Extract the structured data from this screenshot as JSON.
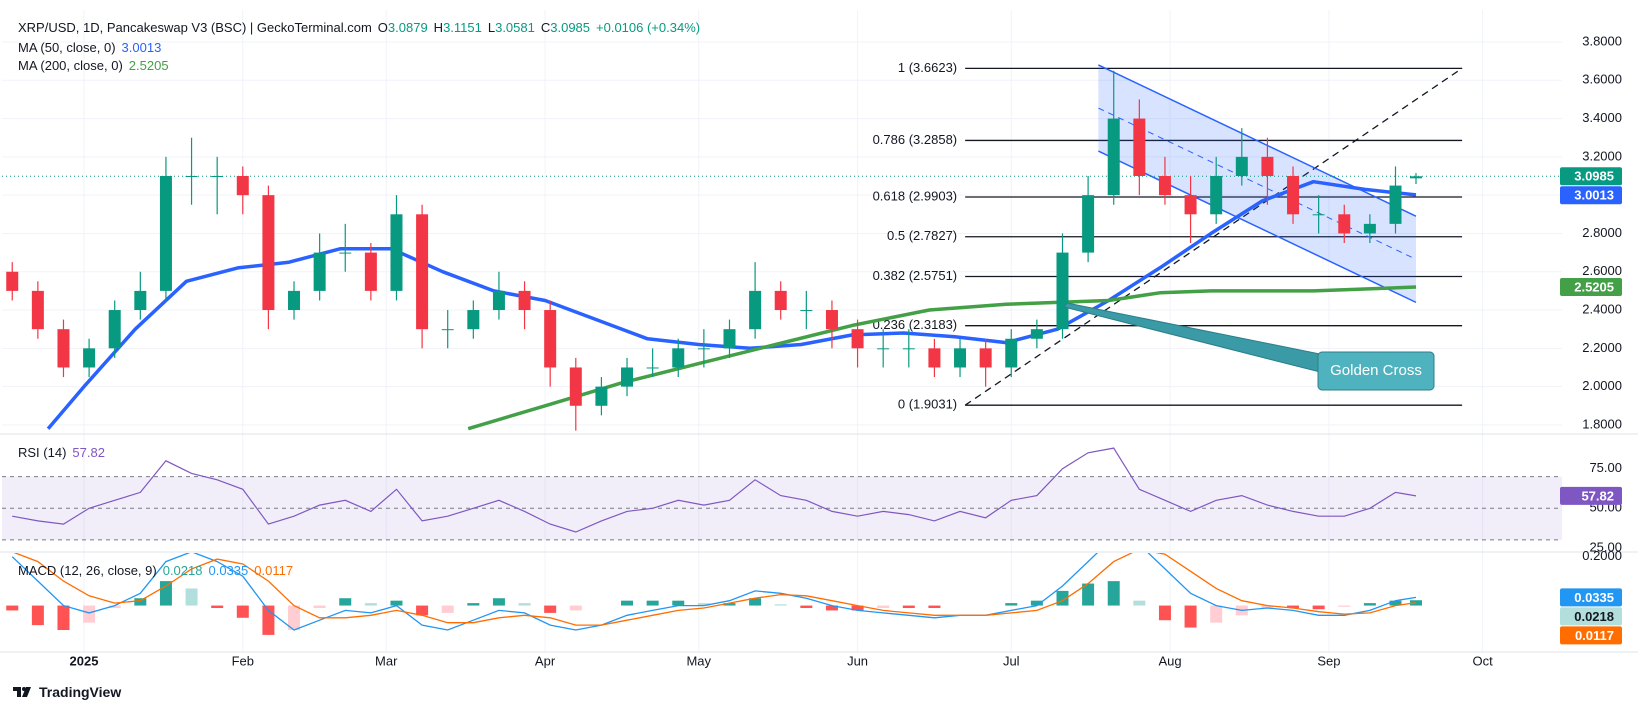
{
  "chart_data": {
    "type": "candlestick",
    "header": {
      "symbol": "XRP/USD, 1D, Pancakeswap V3 (BSC) | GeckoTerminal.com",
      "ohlc_labels": [
        "O",
        "H",
        "L",
        "C"
      ],
      "change": "+0.0106 (+0.34%)"
    },
    "up_color": "#089981",
    "down_color": "#f23645",
    "xlim": [
      -16,
      288.5
    ],
    "xticks": [
      {
        "value": 0,
        "label": "2025"
      },
      {
        "value": 31,
        "label": "Feb"
      },
      {
        "value": 59,
        "label": "Mar"
      },
      {
        "value": 90,
        "label": "Apr"
      },
      {
        "value": 120,
        "label": "May"
      },
      {
        "value": 151,
        "label": "Jun"
      },
      {
        "value": 181,
        "label": "Jul"
      },
      {
        "value": 212,
        "label": "Aug"
      },
      {
        "value": 243,
        "label": "Sep"
      },
      {
        "value": 273,
        "label": "Oct"
      }
    ],
    "ylim": [
      1.763,
      3.967
    ],
    "yticks": [
      {
        "value": 1.8,
        "label": "1.8000"
      },
      {
        "value": 2.0,
        "label": "2.0000"
      },
      {
        "value": 2.2,
        "label": "2.2000"
      },
      {
        "value": 2.4,
        "label": "2.4000"
      },
      {
        "value": 2.6,
        "label": "2.6000"
      },
      {
        "value": 2.8,
        "label": "2.8000"
      },
      {
        "value": 3.0,
        "label": "3.0000"
      },
      {
        "value": 3.2,
        "label": "3.2000"
      },
      {
        "value": 3.4,
        "label": "3.4000"
      },
      {
        "value": 3.6,
        "label": "3.6000"
      },
      {
        "value": 3.8,
        "label": "3.8000"
      }
    ],
    "grid": true,
    "x": [
      -14,
      -9,
      -4,
      1,
      6,
      11,
      16,
      21,
      26,
      31,
      36,
      41,
      46,
      51,
      56,
      61,
      66,
      71,
      76,
      81,
      86,
      91,
      96,
      101,
      106,
      111,
      116,
      121,
      126,
      131,
      136,
      141,
      146,
      151,
      156,
      161,
      166,
      171,
      176,
      181,
      186,
      191,
      196,
      201,
      206,
      211,
      216,
      221,
      226,
      231,
      236,
      241,
      246,
      251,
      256,
      260
    ],
    "open": [
      2.6,
      2.5,
      2.3,
      2.1,
      2.2,
      2.4,
      2.5,
      3.1,
      3.1,
      3.1,
      3.0,
      2.4,
      2.5,
      2.7,
      2.7,
      2.5,
      2.9,
      2.3,
      2.3,
      2.4,
      2.5,
      2.4,
      2.1,
      1.9,
      2.0,
      2.1,
      2.1,
      2.2,
      2.2,
      2.3,
      2.5,
      2.4,
      2.4,
      2.3,
      2.2,
      2.2,
      2.2,
      2.1,
      2.2,
      2.1,
      2.25,
      2.3,
      2.7,
      3.0,
      3.4,
      3.1,
      3.0,
      2.9,
      3.1,
      3.2,
      3.1,
      2.9,
      2.9,
      2.8,
      2.85,
      3.0879
    ],
    "high": [
      2.65,
      2.55,
      2.35,
      2.25,
      2.45,
      2.6,
      3.2,
      3.3,
      3.2,
      3.15,
      3.05,
      2.55,
      2.8,
      2.85,
      2.75,
      3.0,
      2.95,
      2.4,
      2.45,
      2.6,
      2.55,
      2.45,
      2.15,
      2.05,
      2.15,
      2.2,
      2.25,
      2.3,
      2.35,
      2.65,
      2.55,
      2.5,
      2.45,
      2.35,
      2.3,
      2.3,
      2.25,
      2.25,
      2.25,
      2.3,
      2.35,
      2.8,
      3.1,
      3.65,
      3.5,
      3.2,
      3.1,
      3.2,
      3.35,
      3.3,
      3.15,
      3.0,
      2.95,
      2.9,
      3.15,
      3.1151
    ],
    "low": [
      2.45,
      2.25,
      2.05,
      2.05,
      2.15,
      2.35,
      2.45,
      2.95,
      2.9,
      2.9,
      2.3,
      2.35,
      2.45,
      2.6,
      2.45,
      2.45,
      2.2,
      2.2,
      2.25,
      2.35,
      2.3,
      2.0,
      1.77,
      1.85,
      1.95,
      2.05,
      2.05,
      2.1,
      2.15,
      2.25,
      2.35,
      2.3,
      2.2,
      2.1,
      2.1,
      2.1,
      2.05,
      2.05,
      2.0,
      2.05,
      2.2,
      2.25,
      2.65,
      2.95,
      3.0,
      2.95,
      2.75,
      2.85,
      3.05,
      2.95,
      2.85,
      2.8,
      2.75,
      2.75,
      2.8,
      3.0581
    ],
    "close": [
      2.5,
      2.3,
      2.1,
      2.2,
      2.4,
      2.5,
      3.1,
      3.1,
      3.1,
      3.0,
      2.4,
      2.5,
      2.7,
      2.7,
      2.5,
      2.9,
      2.3,
      2.3,
      2.4,
      2.5,
      2.4,
      2.1,
      1.9,
      2.0,
      2.1,
      2.1,
      2.2,
      2.2,
      2.3,
      2.5,
      2.4,
      2.4,
      2.3,
      2.2,
      2.2,
      2.2,
      2.1,
      2.2,
      2.1,
      2.25,
      2.3,
      2.7,
      3.0,
      3.4,
      3.1,
      3.0,
      2.9,
      3.1,
      3.2,
      3.1,
      2.9,
      2.9,
      2.8,
      2.85,
      3.05,
      3.0985
    ],
    "ma": [
      {
        "name": "MA (50, close, 0)",
        "color": "#2962ff",
        "x": [
          -7,
          0,
          10,
          20,
          30,
          40,
          50,
          60,
          70,
          80,
          90,
          100,
          110,
          120,
          130,
          140,
          150,
          160,
          170,
          180,
          190,
          200,
          210,
          220,
          230,
          240,
          250,
          260
        ],
        "values": [
          1.78,
          2.0,
          2.3,
          2.55,
          2.62,
          2.65,
          2.72,
          2.72,
          2.6,
          2.5,
          2.45,
          2.35,
          2.25,
          2.22,
          2.2,
          2.22,
          2.27,
          2.28,
          2.26,
          2.23,
          2.3,
          2.45,
          2.62,
          2.8,
          2.97,
          3.07,
          3.03,
          3.0013
        ]
      },
      {
        "name": "MA (200, close, 0)",
        "color": "#43a047",
        "x": [
          75,
          90,
          105,
          120,
          135,
          150,
          165,
          180,
          190,
          200,
          210,
          220,
          230,
          240,
          250,
          260
        ],
        "values": [
          1.78,
          1.9,
          2.02,
          2.12,
          2.22,
          2.32,
          2.4,
          2.43,
          2.44,
          2.45,
          2.49,
          2.5,
          2.5,
          2.5,
          2.51,
          2.5205
        ]
      }
    ],
    "fib": {
      "x": [
        172,
        269
      ],
      "levels": [
        {
          "value": 3.6623,
          "label": "1 (3.6623)"
        },
        {
          "value": 3.2858,
          "label": "0.786 (3.2858)"
        },
        {
          "value": 2.9903,
          "label": "0.618 (2.9903)"
        },
        {
          "value": 2.7827,
          "label": "0.5 (2.7827)"
        },
        {
          "value": 2.5751,
          "label": "0.382 (2.5751)"
        },
        {
          "value": 2.3183,
          "label": "0.236 (2.3183)"
        },
        {
          "value": 1.9031,
          "label": "0 (1.9031)"
        }
      ]
    },
    "channel": {
      "x": [
        198,
        260
      ],
      "upper": [
        3.68,
        2.89
      ],
      "lower": [
        3.23,
        2.44
      ],
      "color": "#2962ff"
    },
    "annotation": "Golden Cross",
    "rsi": {
      "name": "RSI (14)",
      "color": "#7e57c2",
      "ylim": [
        23,
        95
      ],
      "yticks": [
        {
          "value": 75,
          "label": "75.00"
        },
        {
          "value": 50,
          "label": "50.00"
        },
        {
          "value": 25,
          "label": "25.00"
        }
      ],
      "bands": [
        70,
        50,
        30
      ],
      "values": [
        45,
        42,
        40,
        50,
        55,
        60,
        80,
        72,
        68,
        62,
        40,
        45,
        52,
        55,
        48,
        62,
        42,
        45,
        50,
        55,
        48,
        40,
        35,
        42,
        48,
        50,
        55,
        52,
        55,
        68,
        58,
        55,
        48,
        45,
        48,
        46,
        42,
        48,
        44,
        55,
        58,
        75,
        85,
        88,
        62,
        55,
        48,
        55,
        58,
        52,
        48,
        45,
        45,
        50,
        60,
        57.82
      ]
    },
    "macd": {
      "name": "MACD (12, 26, close, 9)",
      "ylim": [
        -0.19,
        0.215
      ],
      "yticks": [
        {
          "value": 0.2,
          "label": "0.2000"
        }
      ],
      "histogram": {
        "colors": [
          "#26a69a",
          "#b2dfdb",
          "#ff5252",
          "#ffcdd2"
        ],
        "values": [
          -0.02,
          -0.08,
          -0.1,
          -0.07,
          -0.01,
          0.03,
          0.1,
          0.07,
          -0.01,
          -0.05,
          -0.12,
          -0.1,
          -0.01,
          0.03,
          0.01,
          0.02,
          -0.04,
          -0.03,
          0.01,
          0.03,
          0.01,
          -0.03,
          -0.02,
          0.0,
          0.02,
          0.02,
          0.02,
          0.01,
          0.01,
          0.03,
          0.005,
          -0.01,
          -0.02,
          -0.02,
          -0.01,
          -0.01,
          -0.01,
          0.0,
          0.0,
          0.01,
          0.02,
          0.06,
          0.09,
          0.1,
          0.02,
          -0.06,
          -0.09,
          -0.07,
          -0.04,
          -0.01,
          -0.01,
          -0.015,
          -0.005,
          0.01,
          0.02,
          0.0218
        ]
      },
      "macd": {
        "color": "#2196f3",
        "values": [
          0.2,
          0.1,
          0.0,
          -0.03,
          0.0,
          0.05,
          0.18,
          0.22,
          0.18,
          0.12,
          -0.02,
          -0.1,
          -0.06,
          -0.02,
          -0.03,
          0.0,
          -0.08,
          -0.1,
          -0.06,
          -0.02,
          -0.03,
          -0.08,
          -0.1,
          -0.08,
          -0.04,
          -0.02,
          0.0,
          0.0,
          0.02,
          0.06,
          0.05,
          0.03,
          0.0,
          -0.02,
          -0.03,
          -0.04,
          -0.05,
          -0.04,
          -0.04,
          -0.02,
          0.0,
          0.08,
          0.18,
          0.28,
          0.25,
          0.15,
          0.05,
          0.0,
          -0.02,
          -0.01,
          -0.02,
          -0.04,
          -0.04,
          -0.02,
          0.02,
          0.0335
        ]
      },
      "signal": {
        "color": "#ff6d00",
        "values": [
          0.22,
          0.18,
          0.1,
          0.04,
          0.01,
          0.02,
          0.08,
          0.15,
          0.19,
          0.17,
          0.1,
          0.0,
          -0.05,
          -0.05,
          -0.04,
          -0.02,
          -0.04,
          -0.07,
          -0.07,
          -0.05,
          -0.04,
          -0.05,
          -0.08,
          -0.08,
          -0.06,
          -0.04,
          -0.02,
          -0.01,
          0.01,
          0.03,
          0.045,
          0.04,
          0.02,
          0.0,
          -0.02,
          -0.03,
          -0.04,
          -0.04,
          -0.04,
          -0.03,
          -0.02,
          0.02,
          0.09,
          0.18,
          0.23,
          0.21,
          0.14,
          0.07,
          0.02,
          0.0,
          -0.01,
          -0.025,
          -0.035,
          -0.03,
          0.0,
          0.0117
        ]
      }
    },
    "footer": "TradingView"
  }
}
